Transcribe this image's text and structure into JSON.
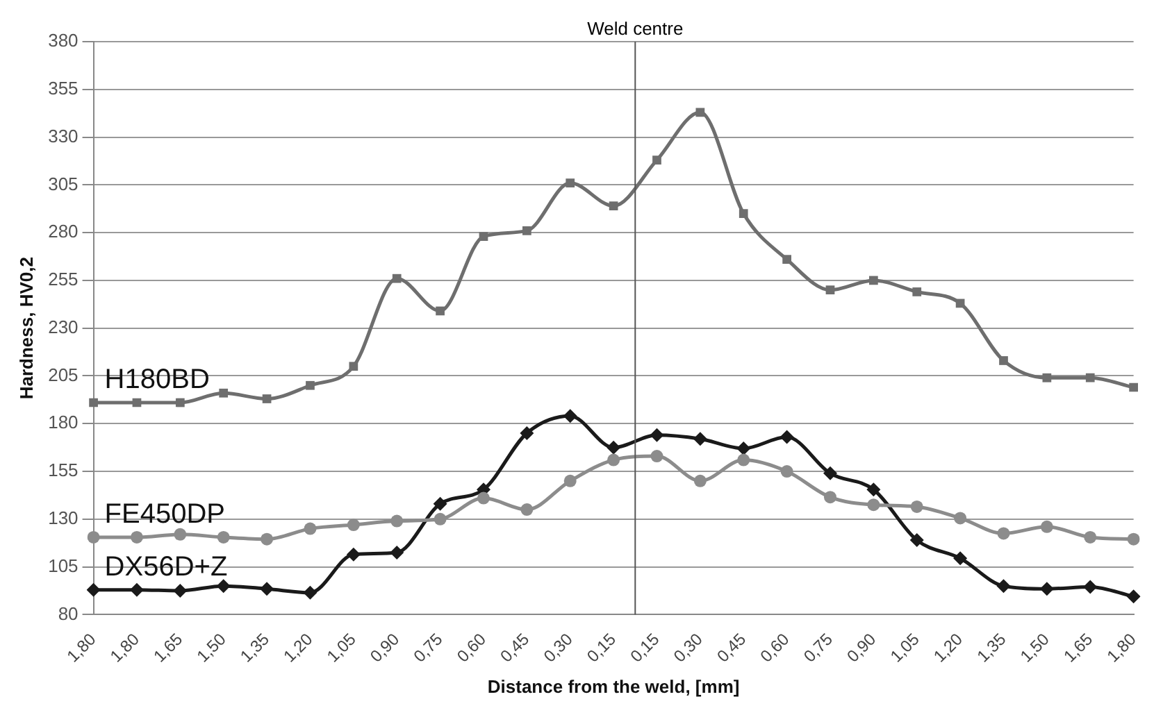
{
  "chart_data": {
    "type": "line",
    "xlabel": "Distance from the weld, [mm]",
    "ylabel": "Hardness, HV0,2",
    "categories": [
      "1,80",
      "1,80",
      "1,65",
      "1,50",
      "1,35",
      "1,20",
      "1,05",
      "0,90",
      "0,75",
      "0,60",
      "0,45",
      "0,30",
      "0,15",
      "0,15",
      "0,30",
      "0,45",
      "0,60",
      "0,75",
      "0,90",
      "1,05",
      "1,20",
      "1,35",
      "1,50",
      "1,65",
      "1,80"
    ],
    "series": [
      {
        "name": "H180BD",
        "color": "#6e6e6e",
        "marker": "square",
        "values": [
          191,
          191,
          191,
          196,
          193,
          200,
          210,
          256,
          239,
          278,
          281,
          306,
          294,
          318,
          343,
          290,
          266,
          250,
          255,
          249,
          243,
          213,
          204,
          204,
          199
        ]
      },
      {
        "name": "FE450DP",
        "color": "#8c8c8c",
        "marker": "circle",
        "values": [
          120.5,
          120.5,
          122,
          120.5,
          119.5,
          125,
          127,
          129,
          130,
          141,
          135,
          150,
          161,
          163,
          150,
          161,
          155,
          141.5,
          137.5,
          136.5,
          130.5,
          122.5,
          126,
          120.5,
          119.5
        ]
      },
      {
        "name": "DX56D+Z",
        "color": "#1a1a1a",
        "marker": "diamond",
        "values": [
          93,
          93,
          92.5,
          95,
          93.5,
          91.5,
          111.5,
          112.5,
          138,
          145.5,
          175,
          184,
          167.5,
          174,
          172,
          167,
          173,
          154,
          145.5,
          119,
          109.5,
          95,
          93.5,
          94.5,
          89.5
        ]
      }
    ],
    "ylim": [
      80,
      380
    ],
    "yticks": [
      80,
      105,
      130,
      155,
      180,
      205,
      230,
      255,
      280,
      305,
      330,
      355,
      380
    ],
    "ref_lines": [
      {
        "axis": "x",
        "value": "0,15",
        "label": "Weld centre",
        "color": "#555555"
      }
    ],
    "grid": "y",
    "legend": false
  }
}
